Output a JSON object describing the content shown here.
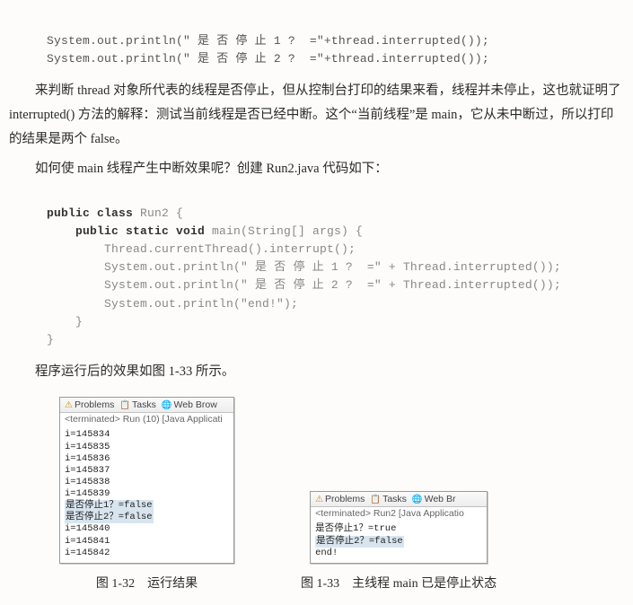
{
  "topCode": {
    "line1": "System.out.println(\" 是 否 停 止 1 ?  =\"+thread.interrupted());",
    "line2": "System.out.println(\" 是 否 停 止 2 ?  =\"+thread.interrupted());"
  },
  "para1": "来判断 thread 对象所代表的线程是否停止，但从控制台打印的结果来看，线程并未停止，这也就证明了 interrupted() 方法的解释：测试当前线程是否已经中断。这个“当前线程”是 main，它从未中断过，所以打印的结果是两个 false。",
  "para2": "如何使 main 线程产生中断效果呢？创建 Run2.java 代码如下：",
  "code2": {
    "l1a": "public class ",
    "l1b": "Run2 {",
    "l2a": "    public static void ",
    "l2b": "main(String[] args) {",
    "l3": "        Thread.currentThread().interrupt();",
    "l4": "        System.out.println(\" 是 否 停 止 1 ?  =\" + Thread.interrupted());",
    "l5": "        System.out.println(\" 是 否 停 止 2 ?  =\" + Thread.interrupted());",
    "l6": "        System.out.println(\"end!\");",
    "l7": "    }",
    "l8": "}"
  },
  "para3": "程序运行后的效果如图 1-33 所示。",
  "figA": {
    "tab1": "Problems",
    "tab2": "Tasks",
    "tab3": "Web Brow",
    "term": "<terminated> Run (10) [Java Applicati",
    "lines": {
      "a": "i=145834",
      "b": "i=145835",
      "c": "i=145836",
      "d": "i=145837",
      "e": "i=145838",
      "f": "i=145839",
      "g": "是否停止1？=false",
      "h": "是否停止2？=false",
      "i": "i=145840",
      "j": "i=145841",
      "k": "i=145842"
    },
    "caption": "图 1-32　运行结果"
  },
  "figB": {
    "tab1": "Problems",
    "tab2": "Tasks",
    "tab3": "Web Br",
    "term": "<terminated> Run2 [Java Applicatio",
    "lines": {
      "a": "是否停止1？=true",
      "b": "是否停止2？=false",
      "c": "end!"
    },
    "caption": "图 1-33　主线程 main 已是停止状态"
  }
}
